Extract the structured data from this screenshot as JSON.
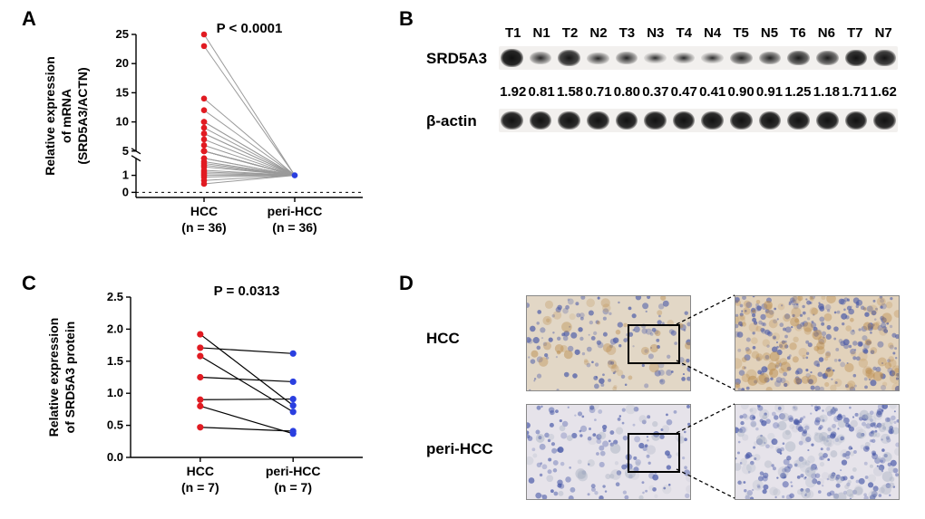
{
  "panels": {
    "A": {
      "label": "A",
      "title_y_1": "Relative expression",
      "title_y_2": "of mRNA",
      "title_y_3": "(SRD5A3/ACTN)",
      "p_text": "P < 0.0001",
      "x_labels": [
        "HCC",
        "peri-HCC"
      ],
      "n_labels": [
        "(n = 36)",
        "(n = 36)"
      ],
      "axis": {
        "xlim": [
          0,
          2
        ],
        "ylim": [
          -3,
          25
        ],
        "break_low": 2,
        "break_high": 5,
        "ticks_low": [
          0,
          1
        ],
        "ticks_high": [
          5,
          10,
          15,
          20,
          25
        ]
      },
      "style": {
        "hcc_color": "#e11b22",
        "peri_color": "#2a3fe0",
        "line_color": "#9a9a9a",
        "marker_r": 3.3,
        "axis_color": "#000",
        "tick_fontsize": 13,
        "label_fontsize": 14,
        "p_fontsize": 15,
        "axis_lw": 1.4
      },
      "hcc_values": [
        25,
        23,
        14,
        12,
        10,
        10,
        9,
        8,
        8,
        7,
        6,
        5,
        5,
        5,
        4,
        4,
        4,
        3,
        3,
        3,
        2.5,
        2.3,
        2.3,
        2,
        2,
        1.8,
        1.7,
        1.6,
        1.5,
        1.3,
        1.2,
        1.1,
        1.0,
        0.9,
        0.7,
        0.5
      ],
      "peri_value": 1.0
    },
    "B": {
      "label": "B",
      "lanes": [
        "T1",
        "N1",
        "T2",
        "N2",
        "T3",
        "N3",
        "T4",
        "N4",
        "T5",
        "N5",
        "T6",
        "N6",
        "T7",
        "N7"
      ],
      "row1_label": "SRD5A3",
      "row2_label": "β-actin",
      "values": [
        "1.92",
        "0.81",
        "1.58",
        "0.71",
        "0.80",
        "0.37",
        "0.47",
        "0.41",
        "0.90",
        "0.91",
        "1.25",
        "1.18",
        "1.71",
        "1.62"
      ],
      "srd5a3_intensity": [
        0.95,
        0.35,
        0.8,
        0.3,
        0.38,
        0.15,
        0.22,
        0.18,
        0.45,
        0.45,
        0.65,
        0.6,
        0.88,
        0.82
      ],
      "actin_intensity": [
        0.92,
        0.92,
        0.92,
        0.92,
        0.92,
        0.92,
        0.92,
        0.92,
        0.92,
        0.92,
        0.92,
        0.92,
        0.92,
        0.92
      ],
      "style": {
        "band_dark": "#3a3a3a",
        "band_bg": "#e9e7e4",
        "value_fontsize": 15,
        "label_fontsize": 15
      }
    },
    "C": {
      "label": "C",
      "title_y_1": "Relative expression",
      "title_y_2": "of SRD5A3 protein",
      "p_text": "P = 0.0313",
      "x_labels": [
        "HCC",
        "peri-HCC"
      ],
      "n_labels": [
        "(n = 7)",
        "(n = 7)"
      ],
      "axis": {
        "ylim": [
          0,
          2.5
        ],
        "yticks": [
          0.0,
          0.5,
          1.0,
          1.5,
          2.0,
          2.5
        ]
      },
      "style": {
        "hcc_color": "#e11b22",
        "peri_color": "#2a3fe0",
        "line_color": "#000",
        "marker_r": 3.6,
        "axis_color": "#000",
        "tick_fontsize": 13,
        "label_fontsize": 14,
        "p_fontsize": 15,
        "axis_lw": 1.4
      },
      "pairs": [
        [
          1.92,
          0.81
        ],
        [
          1.58,
          0.71
        ],
        [
          0.8,
          0.37
        ],
        [
          0.47,
          0.41
        ],
        [
          0.9,
          0.91
        ],
        [
          1.25,
          1.18
        ],
        [
          1.71,
          1.62
        ]
      ]
    },
    "D": {
      "label": "D",
      "rows": [
        "HCC",
        "peri-HCC"
      ],
      "style": {
        "img_bg": "#d2c9b8",
        "zoom_line_color": "#000",
        "hcc_tint": "#b98a4a",
        "peri_tint": "#aab2c3",
        "nuclei_color": "#4a5aa8"
      }
    }
  }
}
